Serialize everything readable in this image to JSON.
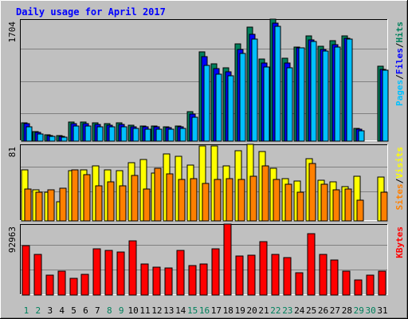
{
  "chart_data": {
    "title": "Daily usage for April 2017",
    "x_labels": [
      "1",
      "2",
      "3",
      "4",
      "5",
      "6",
      "7",
      "8",
      "9",
      "10",
      "11",
      "12",
      "13",
      "14",
      "15",
      "16",
      "17",
      "18",
      "19",
      "20",
      "21",
      "22",
      "23",
      "24",
      "25",
      "26",
      "27",
      "28",
      "29",
      "30",
      "31"
    ],
    "weekend_days": [
      1,
      2,
      8,
      9,
      15,
      16,
      22,
      23,
      29,
      30
    ],
    "colors": {
      "hits": "#00805c",
      "files": "#0000ff",
      "pages": "#00c0ff",
      "visits": "#ffff00",
      "sites": "#ff8000",
      "kbytes": "#ff0000",
      "weekday_label": "#000000",
      "weekend_label": "#00805c",
      "title": "#0000ff",
      "background": "#c0c0c0",
      "grid": "#808080"
    },
    "panels": [
      {
        "type": "bar",
        "max_label": "1704",
        "ylim": [
          0,
          1704
        ],
        "legend": [
          "Pages",
          "Files",
          "Hits"
        ],
        "legend_color_keys": [
          "pages",
          "files",
          "hits"
        ],
        "series": [
          {
            "name": "Hits",
            "color_key": "hits",
            "values": [
              255,
              135,
              90,
              75,
              265,
              265,
              255,
              240,
              255,
              220,
              210,
              210,
              205,
              215,
              410,
              1250,
              1080,
              1020,
              1360,
              1590,
              1150,
              1704,
              1160,
              1315,
              1465,
              1330,
              1400,
              1465,
              175,
              0,
              1045
            ]
          },
          {
            "name": "Files",
            "color_key": "files",
            "values": [
              240,
              125,
              80,
              70,
              245,
              245,
              235,
              225,
              235,
              205,
              195,
              195,
              190,
              200,
              380,
              1175,
              1010,
              970,
              1280,
              1490,
              1095,
              1650,
              1090,
              1300,
              1415,
              1280,
              1345,
              1435,
              165,
              0,
              1000
            ]
          },
          {
            "name": "Pages",
            "color_key": "pages",
            "values": [
              200,
              100,
              70,
              55,
              215,
              215,
              205,
              200,
              200,
              180,
              170,
              170,
              165,
              175,
              330,
              1060,
              940,
              910,
              1230,
              1420,
              1040,
              1600,
              1030,
              1300,
              1390,
              1255,
              1315,
              1420,
              150,
              0,
              990
            ]
          }
        ]
      },
      {
        "type": "bar",
        "max_label": "81",
        "ylim": [
          0,
          81
        ],
        "legend": [
          "Sites",
          "Visits"
        ],
        "legend_color_keys": [
          "sites",
          "visits"
        ],
        "series": [
          {
            "name": "Visits",
            "color_key": "visits",
            "values": [
              54,
              33,
              30,
              20,
              53,
              54,
              58,
              54,
              53,
              62,
              65,
              51,
              71,
              68,
              59,
              79,
              79,
              58,
              74,
              81,
              73,
              56,
              45,
              42,
              66,
              43,
              41,
              36,
              47,
              0,
              46
            ]
          },
          {
            "name": "Sites",
            "color_key": "sites",
            "values": [
              34,
              30,
              33,
              35,
              54,
              49,
              37,
              41,
              37,
              48,
              34,
              56,
              50,
              44,
              45,
              40,
              44,
              45,
              44,
              47,
              58,
              44,
              39,
              30,
              61,
              39,
              33,
              34,
              22,
              0,
              30
            ]
          }
        ]
      },
      {
        "type": "bar",
        "max_label": "92963",
        "ylim": [
          0,
          92963
        ],
        "legend": [
          "KBytes"
        ],
        "legend_color_keys": [
          "kbytes"
        ],
        "series": [
          {
            "name": "KBytes",
            "color_key": "kbytes",
            "values": [
              65200,
              52800,
              25700,
              31000,
              22000,
              26700,
              61000,
              58800,
              56800,
              71200,
              41000,
              36600,
              35400,
              59000,
              38900,
              41000,
              61100,
              92963,
              50900,
              52200,
              69600,
              53200,
              48700,
              28900,
              80800,
              52800,
              45800,
              31300,
              19800,
              26100,
              31800
            ]
          }
        ]
      }
    ]
  }
}
